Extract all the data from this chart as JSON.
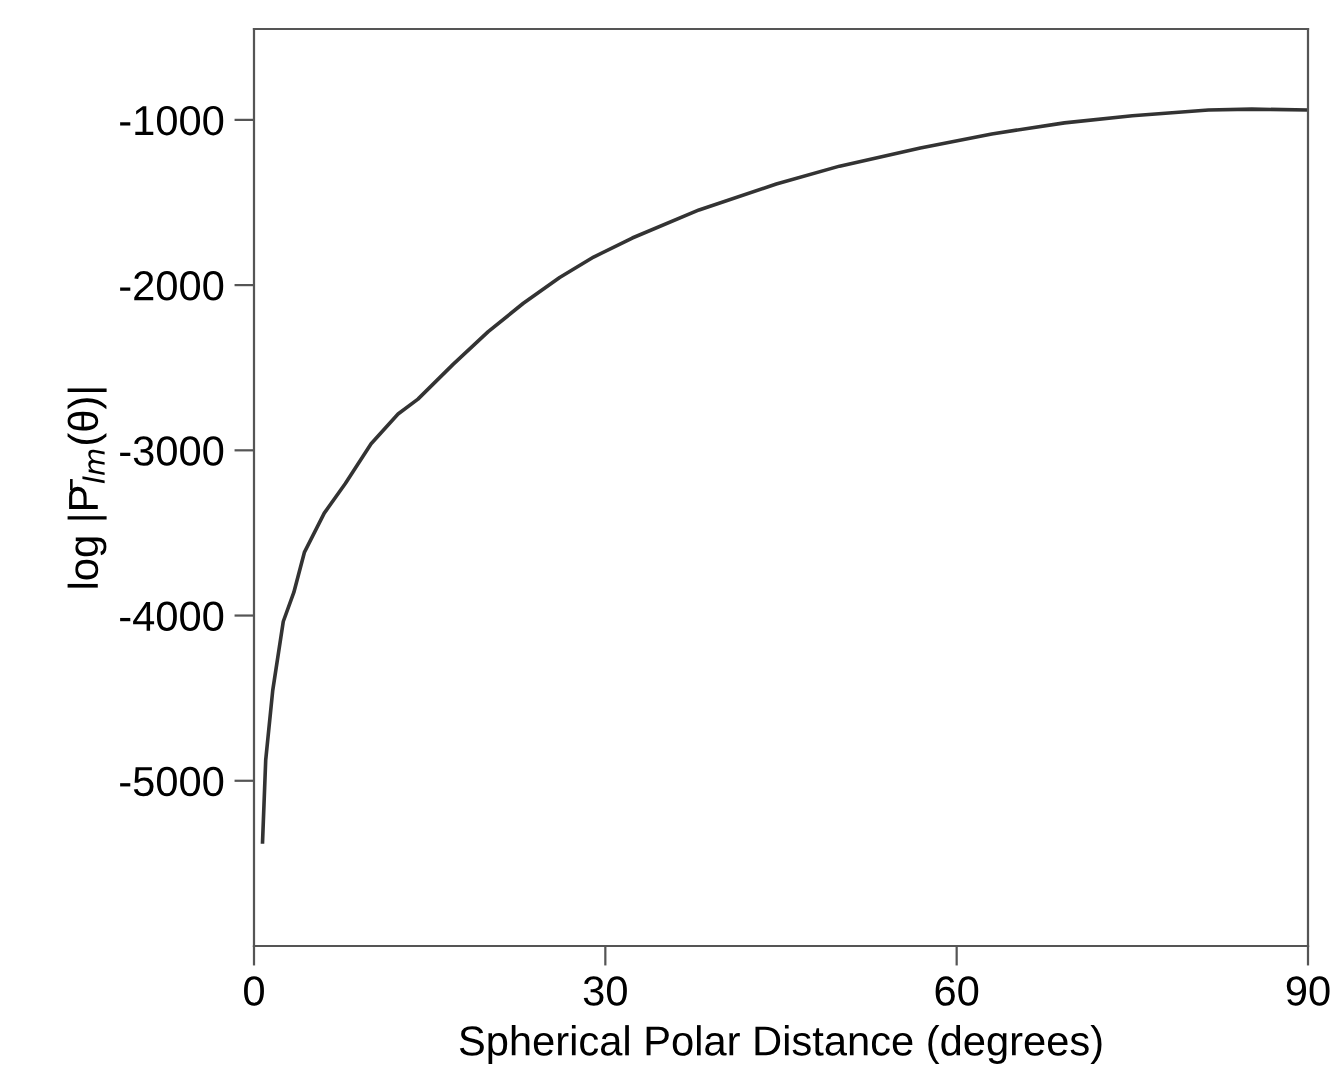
{
  "chart_data": {
    "type": "line",
    "xlabel": "Spherical Polar Distance (degrees)",
    "ylabel": "log |P̄$_{lm}$(θ)|",
    "series": [
      {
        "color": "#333333",
        "x": [
          0.73,
          1.0,
          1.6,
          2.5,
          3.4,
          4.3,
          6.0,
          7.8,
          10.0,
          12.3,
          14.0,
          17.0,
          20.0,
          23.0,
          26.1,
          29.0,
          32.3,
          38.0,
          44.6,
          50.0,
          56.9,
          63.0,
          69.2,
          75.0,
          81.5,
          85.2,
          90.0
        ],
        "values": [
          -5370,
          -4874,
          -4453,
          -4036,
          -3860,
          -3618,
          -3380,
          -3201,
          -2960,
          -2780,
          -2690,
          -2480,
          -2282,
          -2110,
          -1954,
          -1830,
          -1715,
          -1545,
          -1388,
          -1280,
          -1170,
          -1085,
          -1018,
          -975,
          -940,
          -935,
          -940
        ]
      }
    ],
    "xlim": [
      0,
      90
    ],
    "ylim": [
      -6000,
      -450
    ],
    "xticks": [
      0,
      30,
      60,
      90
    ],
    "yticks": [
      -5000,
      -4000,
      -3000,
      -2000,
      -1000
    ],
    "grid": false,
    "legend": false,
    "marker": "none",
    "line_style": "solid"
  }
}
